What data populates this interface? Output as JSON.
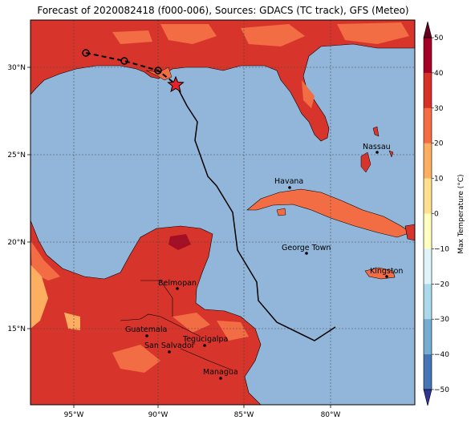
{
  "title": "Forecast of 2020082418 (f000-006), Sources: GDACS (TC track), GFS (Meteo)",
  "colors": {
    "sea": "#92b6da",
    "land_hot": "#d7352b",
    "land_warm": "#f26c44",
    "land_mild": "#fdae61",
    "land_very_hot": "#a50f26",
    "track": "#000000",
    "star": "#e8202a"
  },
  "lon_ticks": [
    "95°W",
    "90°W",
    "85°W",
    "80°W"
  ],
  "lat_ticks": [
    "30°N",
    "25°N",
    "20°N",
    "15°N"
  ],
  "cities": [
    {
      "name": "Havana"
    },
    {
      "name": "Nassau"
    },
    {
      "name": "George Town"
    },
    {
      "name": "Kingston"
    },
    {
      "name": "Belmopan"
    },
    {
      "name": "Guatemala"
    },
    {
      "name": "Tegucigalpa"
    },
    {
      "name": "San Salvador"
    },
    {
      "name": "Managua"
    }
  ],
  "colorbar": {
    "label": "Max Temperature (°C)",
    "ticks": [
      "50",
      "40",
      "30",
      "20",
      "10",
      "0",
      "−10",
      "−20",
      "−30",
      "−40",
      "−50"
    ],
    "colors": [
      "#67001f",
      "#a50026",
      "#d73027",
      "#f46d43",
      "#fdae61",
      "#fee090",
      "#ffffbf",
      "#e0f3f8",
      "#abd9e9",
      "#74add1",
      "#4575b4",
      "#313695"
    ]
  },
  "storm": {
    "symbol": "star-icon"
  }
}
